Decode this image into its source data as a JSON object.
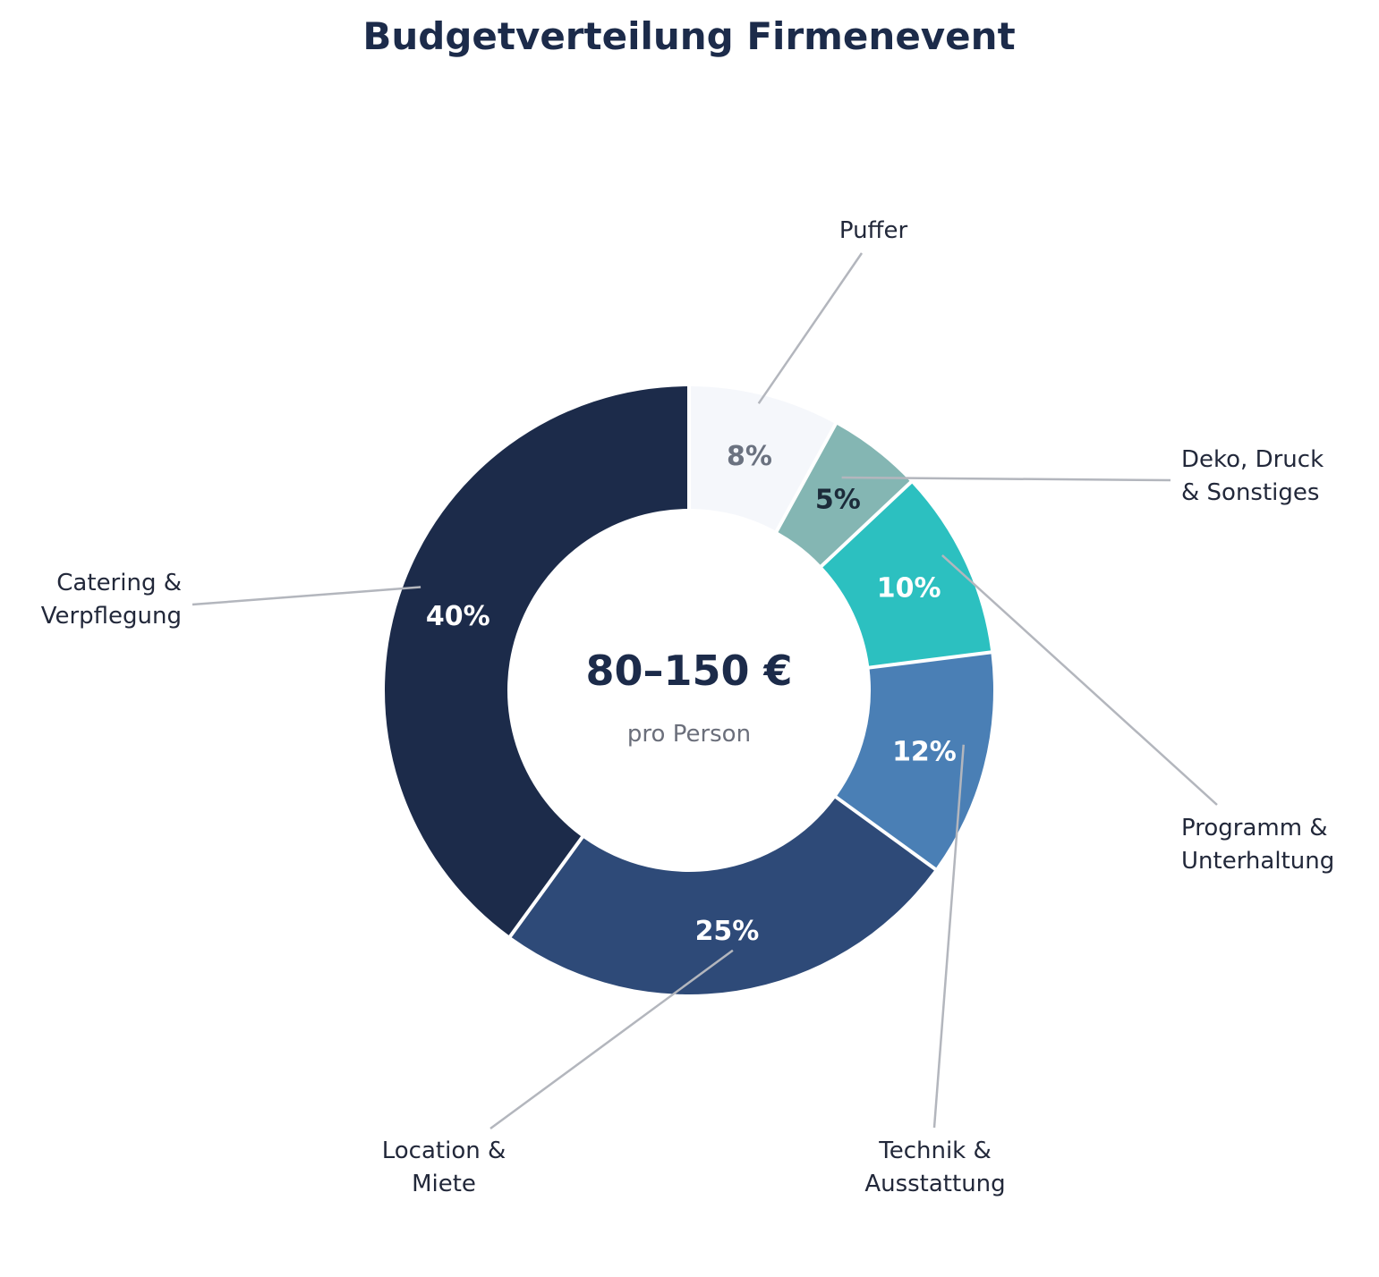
{
  "chart_data": {
    "type": "pie",
    "title": "Budgetverteilung Firmenevent",
    "center": {
      "value": "80–150 €",
      "subtitle": "pro Person"
    },
    "slices": [
      {
        "name": "Puffer",
        "label_lines": [
          "Puffer"
        ],
        "value": 8,
        "display": "8%",
        "color": "#f5f7fb",
        "text_color": "#6b7280"
      },
      {
        "name": "Deko, Druck & Sonstiges",
        "label_lines": [
          "Deko, Druck",
          "& Sonstiges"
        ],
        "value": 5,
        "display": "5%",
        "color": "#84b6b3",
        "text_color": "#1c2b3a"
      },
      {
        "name": "Programm & Unterhaltung",
        "label_lines": [
          "Programm &",
          "Unterhaltung"
        ],
        "value": 10,
        "display": "10%",
        "color": "#2cc0c0",
        "text_color": "#ffffff"
      },
      {
        "name": "Technik & Ausstattung",
        "label_lines": [
          "Technik &",
          "Ausstattung"
        ],
        "value": 12,
        "display": "12%",
        "color": "#4a7fb5",
        "text_color": "#ffffff"
      },
      {
        "name": "Location & Miete",
        "label_lines": [
          "Location &",
          "Miete"
        ],
        "value": 25,
        "display": "25%",
        "color": "#2e4a78",
        "text_color": "#ffffff"
      },
      {
        "name": "Catering & Verpflegung",
        "label_lines": [
          "Catering &",
          "Verpflegung"
        ],
        "value": 40,
        "display": "40%",
        "color": "#1c2b4a",
        "text_color": "#ffffff"
      }
    ],
    "start": "top",
    "direction": "clockwise",
    "legend": "none"
  }
}
